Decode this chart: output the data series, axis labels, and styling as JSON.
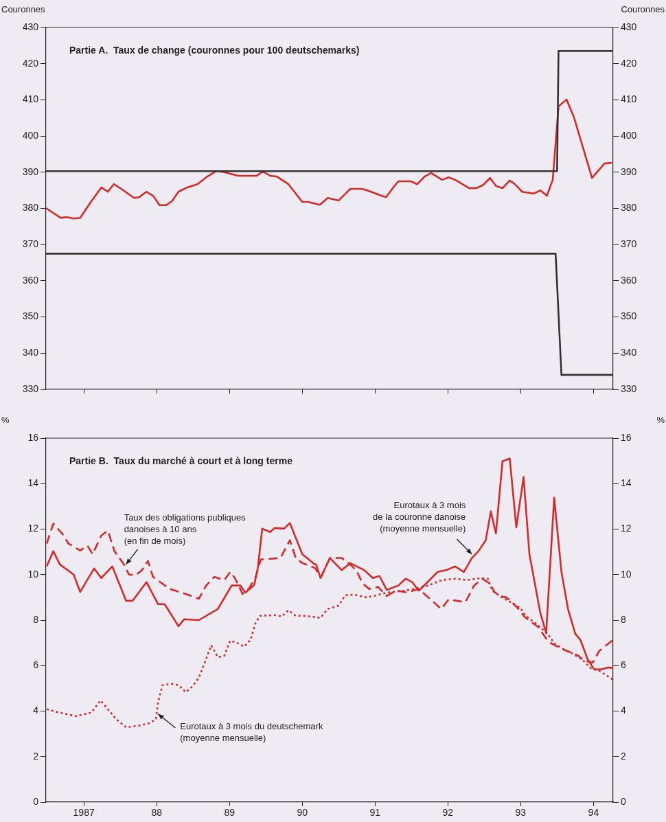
{
  "chart_data": [
    {
      "type": "line",
      "title": "Partie A.  Taux de change (couronnes pour 100 deutschemarks)",
      "ylabel": "Couronnes",
      "y2label": "Couronnes",
      "xlim": [
        1986.48,
        1994.27
      ],
      "xticks": [
        {
          "value": 1987,
          "label": null
        },
        {
          "value": 1988,
          "label": null
        },
        {
          "value": 1989,
          "label": null
        },
        {
          "value": 1990,
          "label": null
        },
        {
          "value": 1991,
          "label": null
        },
        {
          "value": 1992,
          "label": null
        },
        {
          "value": 1993,
          "label": null
        },
        {
          "value": 1994,
          "label": null
        }
      ],
      "ylim": [
        330,
        430
      ],
      "yticks": [
        330,
        340,
        350,
        360,
        370,
        380,
        390,
        400,
        410,
        420,
        430
      ],
      "y2lim": [
        330,
        430
      ],
      "y2ticks": [
        330,
        340,
        350,
        360,
        370,
        380,
        390,
        400,
        410,
        420,
        430
      ],
      "tick_labels": "y",
      "grid": false,
      "legend": false,
      "marker": "none",
      "series": [
        {
          "color": "#333333",
          "line_style": "solid",
          "x": [
            1986.48,
            1993.5,
            1993.52,
            1994.27
          ],
          "values": [
            390.3,
            390.3,
            423.5,
            423.5
          ]
        },
        {
          "color": "#333333",
          "line_style": "solid",
          "x": [
            1986.48,
            1993.48,
            1993.56,
            1994.27
          ],
          "values": [
            367.5,
            367.5,
            334,
            334
          ]
        },
        {
          "color": "#d42a2a",
          "line_style": "solid",
          "x": [
            1986.48,
            1986.68,
            1986.77,
            1986.86,
            1986.95,
            1987.09,
            1987.24,
            1987.33,
            1987.41,
            1987.5,
            1987.69,
            1987.76,
            1987.86,
            1987.95,
            1988.04,
            1988.13,
            1988.21,
            1988.3,
            1988.42,
            1988.56,
            1988.68,
            1988.82,
            1988.93,
            1989.12,
            1989.37,
            1989.46,
            1989.56,
            1989.65,
            1989.81,
            1990.0,
            1990.08,
            1990.24,
            1990.35,
            1990.5,
            1990.66,
            1990.82,
            1990.92,
            1991.06,
            1991.15,
            1991.25,
            1991.32,
            1991.49,
            1991.58,
            1991.68,
            1991.77,
            1991.92,
            1992.01,
            1992.1,
            1992.29,
            1992.39,
            1992.48,
            1992.58,
            1992.66,
            1992.75,
            1992.85,
            1992.92,
            1993.02,
            1993.18,
            1993.27,
            1993.36,
            1993.44,
            1993.52,
            1993.63,
            1993.73,
            1993.98,
            1994.15,
            1994.25
          ],
          "values": [
            380.1,
            377.4,
            377.6,
            377.2,
            377.4,
            381.6,
            385.8,
            384.6,
            386.7,
            385.6,
            382.9,
            383.1,
            384.6,
            383.5,
            380.9,
            380.9,
            382.0,
            384.6,
            385.8,
            386.7,
            388.6,
            390.3,
            390.0,
            389.0,
            389.0,
            390.2,
            389.0,
            388.8,
            386.7,
            381.8,
            381.8,
            381.0,
            382.9,
            382.2,
            385.4,
            385.4,
            384.8,
            383.7,
            383.1,
            385.8,
            387.5,
            387.5,
            386.7,
            388.8,
            389.8,
            387.9,
            388.6,
            387.9,
            385.6,
            385.6,
            386.4,
            388.4,
            386.2,
            385.6,
            387.7,
            386.7,
            384.6,
            384.1,
            385.0,
            383.5,
            387.9,
            408.2,
            410.1,
            405.3,
            388.4,
            392.4,
            392.6
          ]
        }
      ]
    },
    {
      "type": "line",
      "title": "Partie B.  Taux du marché à court et à long terme",
      "ylabel": "%",
      "y2label": "%",
      "xlim": [
        1986.48,
        1994.27
      ],
      "xticks": [
        {
          "value": 1987,
          "label": "1987"
        },
        {
          "value": 1988,
          "label": "88"
        },
        {
          "value": 1989,
          "label": "89"
        },
        {
          "value": 1990,
          "label": "90"
        },
        {
          "value": 1991,
          "label": "91"
        },
        {
          "value": 1992,
          "label": "92"
        },
        {
          "value": 1993,
          "label": "93"
        },
        {
          "value": 1994,
          "label": "94"
        }
      ],
      "ylim": [
        0,
        16
      ],
      "yticks": [
        0,
        2,
        4,
        6,
        8,
        10,
        12,
        14,
        16
      ],
      "y2lim": [
        0,
        16
      ],
      "y2ticks": [
        0,
        2,
        4,
        6,
        8,
        10,
        12,
        14,
        16
      ],
      "grid": false,
      "legend": false,
      "marker": "none",
      "annotations": [
        {
          "text": "Taux des obligations publiques\ndanoises à 10 ans\n(en fin de mois)",
          "x": 1987.58,
          "y": 10.45
        },
        {
          "text": "Eurotaux à 3 mois\nde la couronne danoise\n(moyenne mensuelle)",
          "x": 1992.33,
          "y": 10.9
        },
        {
          "text": "Eurotaux à 3 mois du deutschemark\n(moyenne mensuelle)",
          "x": 1988.02,
          "y": 3.87
        }
      ],
      "series": [
        {
          "color": "#d42a2a",
          "line_style": "solid",
          "x": [
            1986.49,
            1986.58,
            1986.67,
            1986.86,
            1986.95,
            1987.14,
            1987.24,
            1987.39,
            1987.58,
            1987.67,
            1987.86,
            1988.02,
            1988.11,
            1988.3,
            1988.38,
            1988.58,
            1988.84,
            1989.03,
            1989.15,
            1989.22,
            1989.34,
            1989.39,
            1989.45,
            1989.56,
            1989.62,
            1989.75,
            1989.83,
            1990.0,
            1990.17,
            1990.19,
            1990.25,
            1990.38,
            1990.54,
            1990.66,
            1990.85,
            1990.97,
            1991.06,
            1991.16,
            1991.32,
            1991.42,
            1991.51,
            1991.6,
            1991.73,
            1991.86,
            1991.98,
            1992.1,
            1992.22,
            1992.33,
            1992.42,
            1992.52,
            1992.59,
            1992.66,
            1992.75,
            1992.85,
            1992.94,
            1993.04,
            1993.12,
            1993.27,
            1993.35,
            1993.46,
            1993.56,
            1993.65,
            1993.75,
            1993.82,
            1993.92,
            1994.01,
            1994.1,
            1994.2,
            1994.27
          ],
          "values": [
            10.36,
            11.03,
            10.45,
            10.0,
            9.24,
            10.27,
            9.85,
            10.36,
            8.85,
            8.85,
            9.67,
            8.7,
            8.7,
            7.73,
            8.04,
            8.0,
            8.49,
            9.52,
            9.52,
            9.21,
            9.55,
            10.3,
            12.02,
            11.87,
            12.05,
            12.02,
            12.27,
            10.9,
            10.45,
            10.45,
            9.85,
            10.73,
            10.2,
            10.5,
            10.2,
            9.85,
            9.94,
            9.33,
            9.52,
            9.82,
            9.67,
            9.3,
            9.7,
            10.12,
            10.2,
            10.36,
            10.12,
            10.73,
            11.03,
            11.51,
            12.78,
            11.81,
            14.98,
            15.1,
            12.08,
            14.29,
            10.9,
            8.31,
            7.43,
            13.38,
            10.12,
            8.49,
            7.4,
            7.13,
            6.28,
            5.83,
            5.83,
            5.92,
            5.89
          ]
        },
        {
          "color": "#d42a2a",
          "line_style": "dashed",
          "x": [
            1986.49,
            1986.58,
            1986.7,
            1986.79,
            1986.95,
            1987.05,
            1987.12,
            1987.24,
            1987.33,
            1987.42,
            1987.55,
            1987.62,
            1987.71,
            1987.8,
            1987.88,
            1987.95,
            1988.05,
            1988.18,
            1988.4,
            1988.58,
            1988.68,
            1988.79,
            1988.93,
            1989.01,
            1989.08,
            1989.18,
            1989.27,
            1989.36,
            1989.43,
            1989.7,
            1989.83,
            1989.91,
            1990.0,
            1990.17,
            1990.26,
            1990.38,
            1990.54,
            1990.66,
            1990.75,
            1990.83,
            1990.92,
            1991.04,
            1991.16,
            1991.29,
            1991.44,
            1991.6,
            1991.73,
            1991.91,
            1992.01,
            1992.12,
            1992.24,
            1992.36,
            1992.47,
            1992.58,
            1992.64,
            1992.71,
            1992.8,
            1992.86,
            1992.97,
            1993.05,
            1993.13,
            1993.24,
            1993.35,
            1993.42,
            1993.56,
            1993.68,
            1993.79,
            1993.87,
            1993.99,
            1994.08,
            1994.27
          ],
          "values": [
            11.36,
            12.24,
            11.81,
            11.36,
            11.06,
            11.27,
            10.9,
            11.72,
            11.93,
            11.03,
            10.45,
            10.0,
            9.97,
            10.2,
            10.6,
            9.9,
            9.67,
            9.37,
            9.15,
            8.94,
            9.52,
            9.9,
            9.76,
            10.12,
            9.82,
            9.15,
            9.4,
            9.9,
            10.66,
            10.73,
            11.51,
            10.73,
            10.51,
            10.3,
            9.9,
            10.73,
            10.73,
            10.45,
            10.15,
            9.6,
            9.37,
            9.46,
            9.06,
            9.3,
            9.21,
            9.37,
            9.0,
            8.49,
            8.91,
            8.85,
            8.79,
            9.52,
            9.82,
            9.61,
            9.24,
            9.06,
            9.0,
            8.85,
            8.49,
            8.16,
            7.95,
            7.7,
            7.19,
            6.98,
            6.74,
            6.59,
            6.44,
            6.22,
            6.13,
            6.65,
            7.13
          ]
        },
        {
          "color": "#d42a2a",
          "line_style": "dotted",
          "x": [
            1986.49,
            1986.67,
            1986.89,
            1987.1,
            1987.23,
            1987.33,
            1987.45,
            1987.58,
            1987.74,
            1987.91,
            1987.99,
            1988.02,
            1988.08,
            1988.21,
            1988.3,
            1988.4,
            1988.49,
            1988.58,
            1988.66,
            1988.75,
            1988.84,
            1988.93,
            1989.01,
            1989.12,
            1989.2,
            1989.29,
            1989.36,
            1989.42,
            1989.62,
            1989.72,
            1989.81,
            1989.91,
            1990.03,
            1990.25,
            1990.35,
            1990.5,
            1990.59,
            1990.71,
            1990.88,
            1991.02,
            1991.16,
            1991.42,
            1991.58,
            1991.73,
            1991.92,
            1992.1,
            1992.26,
            1992.45,
            1992.55,
            1992.61,
            1992.71,
            1992.86,
            1992.99,
            1993.07,
            1993.21,
            1993.37,
            1993.46,
            1993.58,
            1993.71,
            1993.84,
            1993.96,
            1994.08,
            1994.27
          ],
          "values": [
            4.08,
            3.93,
            3.78,
            3.93,
            4.47,
            4.08,
            3.63,
            3.29,
            3.35,
            3.47,
            3.66,
            4.41,
            5.14,
            5.2,
            5.14,
            4.83,
            5.08,
            5.47,
            6.13,
            6.89,
            6.37,
            6.44,
            7.1,
            6.98,
            6.83,
            7.13,
            7.89,
            8.19,
            8.22,
            8.16,
            8.43,
            8.19,
            8.19,
            8.1,
            8.49,
            8.64,
            9.09,
            9.12,
            9.0,
            9.09,
            9.21,
            9.3,
            9.4,
            9.52,
            9.76,
            9.82,
            9.76,
            9.85,
            9.82,
            9.3,
            9.06,
            8.79,
            8.55,
            8.19,
            7.85,
            7.4,
            6.98,
            6.74,
            6.53,
            6.28,
            5.89,
            5.77,
            5.38
          ]
        }
      ]
    }
  ]
}
